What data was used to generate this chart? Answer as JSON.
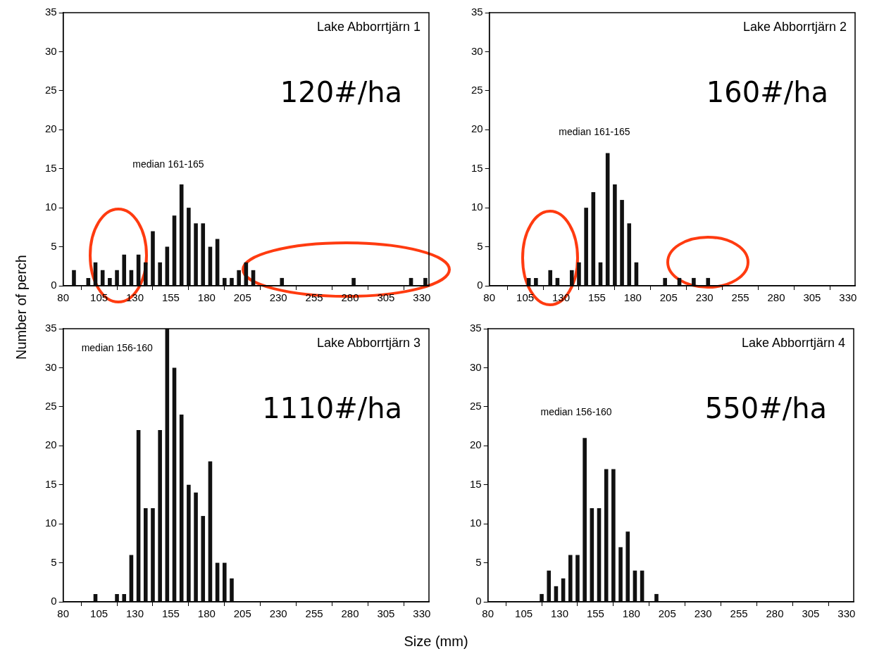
{
  "chart_data": [
    {
      "type": "histogram",
      "title": "Lake Abborrtjärn 1",
      "ylabel": "Number of perch",
      "annotations": [
        "120#/ha",
        "median 161-165"
      ],
      "color": "#111111",
      "bins": [
        80,
        85,
        90,
        95,
        100,
        105,
        110,
        115,
        120,
        125,
        130,
        135,
        140,
        145,
        150,
        155,
        160,
        165,
        170,
        175,
        180,
        185,
        190,
        195,
        200,
        205,
        210,
        215,
        220,
        225,
        230,
        235,
        240,
        245,
        250,
        255,
        260,
        265,
        270,
        275,
        280,
        285,
        290,
        295,
        300,
        305,
        310,
        315,
        320,
        325,
        330,
        335
      ],
      "values": [
        0,
        2,
        0,
        1,
        3,
        2,
        1,
        2,
        4,
        2,
        4,
        3,
        7,
        3,
        5,
        9,
        13,
        10,
        8,
        8,
        5,
        6,
        1,
        1,
        2,
        3,
        2,
        0,
        0,
        0,
        1,
        0,
        0,
        0,
        0,
        0,
        0,
        0,
        0,
        0,
        1,
        0,
        0,
        0,
        0,
        0,
        0,
        0,
        1,
        0,
        1
      ],
      "xlim": [
        80,
        335
      ],
      "xticks": [
        80,
        105,
        130,
        155,
        180,
        205,
        230,
        255,
        280,
        305,
        330
      ],
      "ylim": [
        0,
        35
      ],
      "yticks": [
        0,
        5,
        10,
        15,
        20,
        25,
        30,
        35
      ],
      "grid": false,
      "legend": false
    },
    {
      "type": "histogram",
      "title": "Lake Abborrtjärn 2",
      "annotations": [
        "160#/ha",
        "median 161-165"
      ],
      "color": "#111111",
      "bins": [
        80,
        85,
        90,
        95,
        100,
        105,
        110,
        115,
        120,
        125,
        130,
        135,
        140,
        145,
        150,
        155,
        160,
        165,
        170,
        175,
        180,
        185,
        190,
        195,
        200,
        205,
        210,
        215,
        220,
        225,
        230,
        235,
        240,
        245,
        250,
        255,
        260,
        265,
        270,
        275,
        280,
        285,
        290,
        295,
        300,
        305,
        310,
        315,
        320,
        325,
        330,
        335
      ],
      "values": [
        0,
        0,
        0,
        0,
        0,
        1,
        1,
        0,
        2,
        1,
        0,
        2,
        3,
        10,
        12,
        3,
        17,
        13,
        11,
        8,
        3,
        0,
        0,
        0,
        1,
        0,
        1,
        0,
        1,
        0,
        1,
        0,
        0,
        0,
        0,
        0,
        0,
        0,
        0,
        0,
        0,
        0,
        0,
        0,
        0,
        0,
        0,
        0,
        0,
        0,
        0
      ],
      "xlim": [
        80,
        335
      ],
      "xticks": [
        80,
        105,
        130,
        155,
        180,
        205,
        230,
        255,
        280,
        305,
        330
      ],
      "ylim": [
        0,
        35
      ],
      "yticks": [
        0,
        5,
        10,
        15,
        20,
        25,
        30,
        35
      ],
      "grid": false,
      "legend": false
    },
    {
      "type": "histogram",
      "title": "Lake Abborrtjärn 3",
      "xlabel": "Size (mm)",
      "annotations": [
        "1110#/ha",
        "median 156-160"
      ],
      "color": "#111111",
      "bins": [
        80,
        85,
        90,
        95,
        100,
        105,
        110,
        115,
        120,
        125,
        130,
        135,
        140,
        145,
        150,
        155,
        160,
        165,
        170,
        175,
        180,
        185,
        190,
        195,
        200,
        205,
        210,
        215,
        220,
        225,
        230,
        235,
        240,
        245,
        250,
        255,
        260,
        265,
        270,
        275,
        280,
        285,
        290,
        295,
        300,
        305,
        310,
        315,
        320,
        325,
        330,
        335
      ],
      "values": [
        0,
        0,
        0,
        0,
        1,
        0,
        0,
        1,
        1,
        6,
        22,
        12,
        12,
        22,
        35,
        30,
        24,
        15,
        14,
        11,
        18,
        5,
        5,
        3,
        0,
        0,
        0,
        0,
        0,
        0,
        0,
        0,
        0,
        0,
        0,
        0,
        0,
        0,
        0,
        0,
        0,
        0,
        0,
        0,
        0,
        0,
        0,
        0,
        0,
        0,
        0
      ],
      "xlim": [
        80,
        335
      ],
      "xticks": [
        80,
        105,
        130,
        155,
        180,
        205,
        230,
        255,
        280,
        305,
        330
      ],
      "ylim": [
        0,
        35
      ],
      "yticks": [
        0,
        5,
        10,
        15,
        20,
        25,
        30,
        35
      ],
      "grid": false,
      "legend": false
    },
    {
      "type": "histogram",
      "title": "Lake Abborrtjärn 4",
      "annotations": [
        "550#/ha",
        "median 156-160"
      ],
      "color": "#111111",
      "bins": [
        80,
        85,
        90,
        95,
        100,
        105,
        110,
        115,
        120,
        125,
        130,
        135,
        140,
        145,
        150,
        155,
        160,
        165,
        170,
        175,
        180,
        185,
        190,
        195,
        200,
        205,
        210,
        215,
        220,
        225,
        230,
        235,
        240,
        245,
        250,
        255,
        260,
        265,
        270,
        275,
        280,
        285,
        290,
        295,
        300,
        305,
        310,
        315,
        320,
        325,
        330,
        335
      ],
      "values": [
        0,
        0,
        0,
        0,
        0,
        0,
        0,
        1,
        4,
        2,
        3,
        6,
        6,
        21,
        12,
        12,
        17,
        17,
        7,
        9,
        4,
        4,
        0,
        1,
        0,
        0,
        0,
        0,
        0,
        0,
        0,
        0,
        0,
        0,
        0,
        0,
        0,
        0,
        0,
        0,
        0,
        0,
        0,
        0,
        0,
        0,
        0,
        0,
        0,
        0,
        0
      ],
      "xlim": [
        80,
        335
      ],
      "xticks": [
        80,
        105,
        130,
        155,
        180,
        205,
        230,
        255,
        280,
        305,
        330
      ],
      "ylim": [
        0,
        35
      ],
      "yticks": [
        0,
        5,
        10,
        15,
        20,
        25,
        30,
        35
      ],
      "grid": false,
      "legend": false
    }
  ]
}
